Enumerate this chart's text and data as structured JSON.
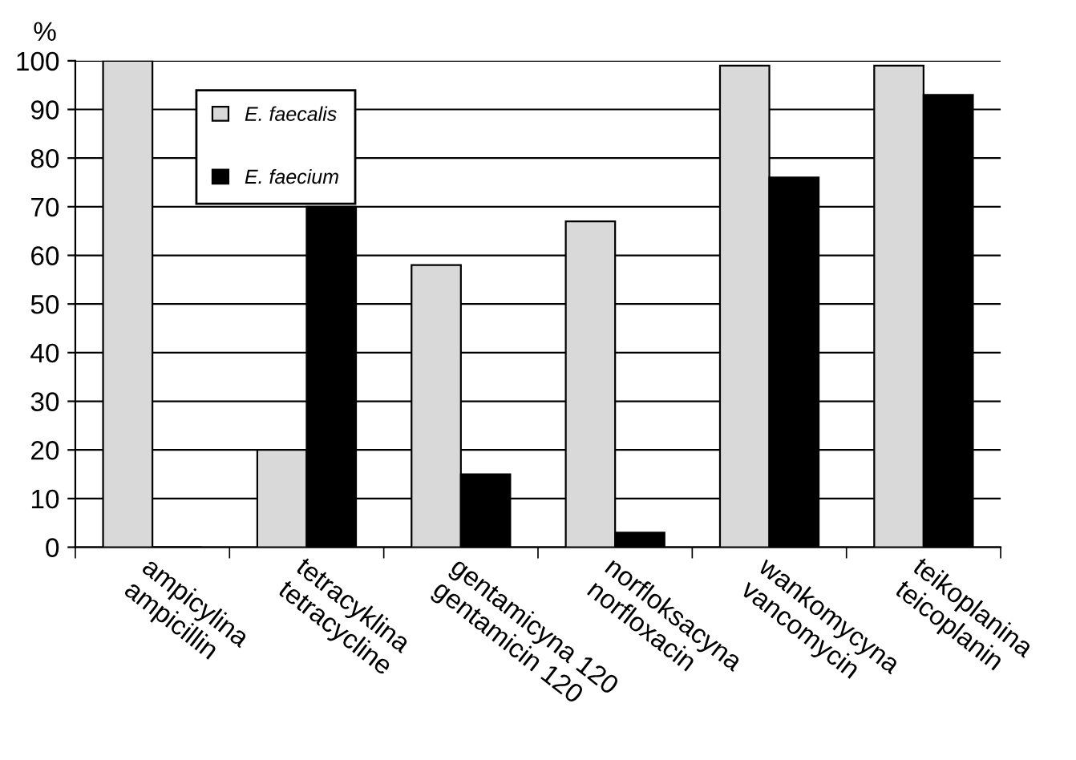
{
  "chart_data": {
    "type": "bar",
    "ylabel": "%",
    "categories": [
      "ampicylina\nampicillin",
      "tetracyklina\ntetracycline",
      "gentamicyna 120\ngentamicin 120",
      "norfloksacyna\nnorfloxacin",
      "wankomycyna\nvancomycin",
      "teikoplanina\nteicoplanin"
    ],
    "series": [
      {
        "name": "E. faecalis",
        "color": "#d9d9d9",
        "values": [
          100,
          20,
          58,
          67,
          99,
          99
        ]
      },
      {
        "name": "E. faecium",
        "color": "#000000",
        "values": [
          0,
          70,
          15,
          3,
          76,
          93
        ]
      }
    ],
    "ylim": [
      0,
      100
    ],
    "yticks": [
      0,
      10,
      20,
      30,
      40,
      50,
      60,
      70,
      80,
      90,
      100
    ],
    "grid": "y",
    "legend": "top left"
  }
}
